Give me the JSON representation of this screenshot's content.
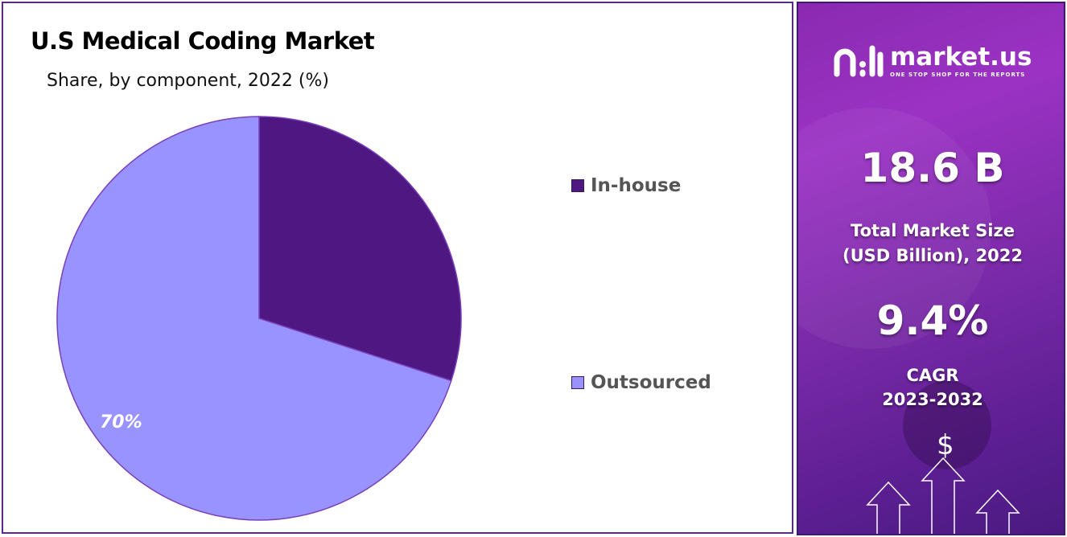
{
  "chart_data": {
    "type": "pie",
    "title": "U.S Medical Coding Market",
    "subtitle": "Share, by component, 2022 (%)",
    "slices": [
      {
        "label": "In-house",
        "value": 30,
        "color": "#4e1782"
      },
      {
        "label": "Outsourced",
        "value": 70,
        "color": "#9893ff",
        "data_label": "70%"
      }
    ],
    "legend_position": "right"
  },
  "brand": {
    "name": "market.us",
    "tagline": "ONE STOP SHOP FOR THE REPORTS"
  },
  "stats": {
    "market_size": "18.6 B",
    "market_size_label_1": "Total Market Size",
    "market_size_label_2": "(USD Billion), 2022",
    "cagr": "9.4%",
    "cagr_label_1": "CAGR",
    "cagr_label_2": "2023-2032"
  },
  "icons": {
    "currency": "$"
  }
}
